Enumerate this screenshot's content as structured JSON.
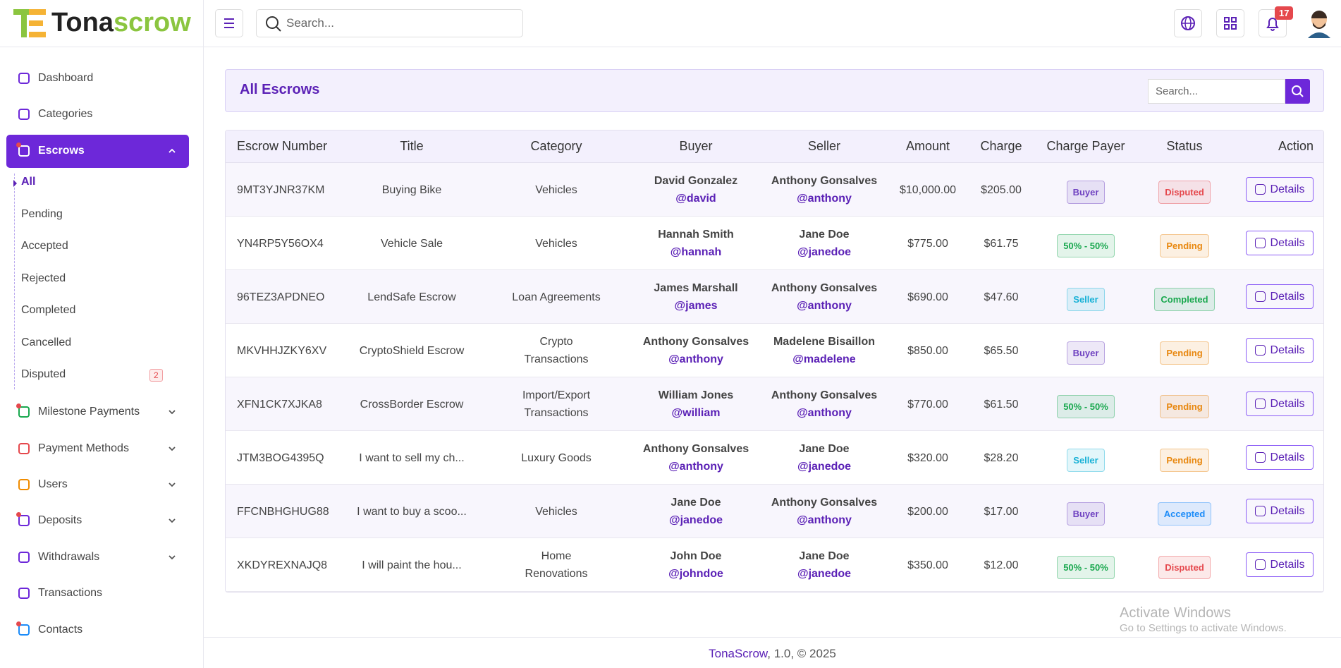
{
  "header": {
    "logo_part1": "Tona",
    "logo_part2": "scrow",
    "search_placeholder": "Search...",
    "notification_count": "17"
  },
  "sidebar": {
    "items": [
      {
        "label": "Dashboard"
      },
      {
        "label": "Categories"
      },
      {
        "label": "Escrows",
        "submenu": [
          "All",
          "Pending",
          "Accepted",
          "Rejected",
          "Completed",
          "Cancelled",
          "Disputed"
        ],
        "disputed_count": "2"
      },
      {
        "label": "Milestone Payments"
      },
      {
        "label": "Payment Methods"
      },
      {
        "label": "Users"
      },
      {
        "label": "Deposits"
      },
      {
        "label": "Withdrawals"
      },
      {
        "label": "Transactions"
      },
      {
        "label": "Contacts"
      }
    ]
  },
  "page": {
    "title": "All Escrows",
    "search_placeholder": "Search..."
  },
  "table": {
    "headers": [
      "Escrow Number",
      "Title",
      "Category",
      "Buyer",
      "Seller",
      "Amount",
      "Charge",
      "Charge Payer",
      "Status",
      "Action"
    ],
    "rows": [
      {
        "escrow_number": "9MT3YJNR37KM",
        "title": "Buying Bike",
        "category": "Vehicles",
        "buyer": {
          "name": "David Gonzalez",
          "username": "@david"
        },
        "seller": {
          "name": "Anthony Gonsalves",
          "username": "@anthony"
        },
        "amount": "$10,000.00",
        "charge": "$205.00",
        "charge_payer": {
          "text": "Buyer",
          "color": "#6f42c1"
        },
        "status": {
          "text": "Disputed",
          "color": "#e5484d"
        },
        "action": "Details"
      },
      {
        "escrow_number": "YN4RP5Y56OX4",
        "title": "Vehicle Sale",
        "category": "Vehicles",
        "buyer": {
          "name": "Hannah Smith",
          "username": "@hannah"
        },
        "seller": {
          "name": "Jane Doe",
          "username": "@janedoe"
        },
        "amount": "$775.00",
        "charge": "$61.75",
        "charge_payer": {
          "text": "50% - 50%",
          "color": "#1aa84f"
        },
        "status": {
          "text": "Pending",
          "color": "#e8870e"
        },
        "action": "Details"
      },
      {
        "escrow_number": "96TEZ3APDNEO",
        "title": "LendSafe Escrow",
        "category": "Loan Agreements",
        "buyer": {
          "name": "James Marshall",
          "username": "@james"
        },
        "seller": {
          "name": "Anthony Gonsalves",
          "username": "@anthony"
        },
        "amount": "$690.00",
        "charge": "$47.60",
        "charge_payer": {
          "text": "Seller",
          "color": "#17b1d6"
        },
        "status": {
          "text": "Completed",
          "color": "#1aa84f"
        },
        "action": "Details"
      },
      {
        "escrow_number": "MKVHHJZKY6XV",
        "title": "CryptoShield Escrow",
        "category": "Crypto Transactions",
        "buyer": {
          "name": "Anthony Gonsalves",
          "username": "@anthony"
        },
        "seller": {
          "name": "Madelene Bisaillon",
          "username": "@madelene"
        },
        "amount": "$850.00",
        "charge": "$65.50",
        "charge_payer": {
          "text": "Buyer",
          "color": "#6f42c1"
        },
        "status": {
          "text": "Pending",
          "color": "#e8870e"
        },
        "action": "Details"
      },
      {
        "escrow_number": "XFN1CK7XJKA8",
        "title": "CrossBorder Escrow",
        "category": "Import/Export Transactions",
        "buyer": {
          "name": "William Jones",
          "username": "@william"
        },
        "seller": {
          "name": "Anthony Gonsalves",
          "username": "@anthony"
        },
        "amount": "$770.00",
        "charge": "$61.50",
        "charge_payer": {
          "text": "50% - 50%",
          "color": "#1aa84f"
        },
        "status": {
          "text": "Pending",
          "color": "#e8870e"
        },
        "action": "Details"
      },
      {
        "escrow_number": "JTM3BOG4395Q",
        "title": "I want to sell my ch...",
        "category": "Luxury Goods",
        "buyer": {
          "name": "Anthony Gonsalves",
          "username": "@anthony"
        },
        "seller": {
          "name": "Jane Doe",
          "username": "@janedoe"
        },
        "amount": "$320.00",
        "charge": "$28.20",
        "charge_payer": {
          "text": "Seller",
          "color": "#17b1d6"
        },
        "status": {
          "text": "Pending",
          "color": "#e8870e"
        },
        "action": "Details"
      },
      {
        "escrow_number": "FFCNBHGHUG88",
        "title": "I want to buy a scoo...",
        "category": "Vehicles",
        "buyer": {
          "name": "Jane Doe",
          "username": "@janedoe"
        },
        "seller": {
          "name": "Anthony Gonsalves",
          "username": "@anthony"
        },
        "amount": "$200.00",
        "charge": "$17.00",
        "charge_payer": {
          "text": "Buyer",
          "color": "#6f42c1"
        },
        "status": {
          "text": "Accepted",
          "color": "#1d8cf8"
        },
        "action": "Details"
      },
      {
        "escrow_number": "XKDYREXNAJQ8",
        "title": "I will paint the hou...",
        "category": "Home Renovations",
        "buyer": {
          "name": "John Doe",
          "username": "@johndoe"
        },
        "seller": {
          "name": "Jane Doe",
          "username": "@janedoe"
        },
        "amount": "$350.00",
        "charge": "$12.00",
        "charge_payer": {
          "text": "50% - 50%",
          "color": "#1aa84f"
        },
        "status": {
          "text": "Disputed",
          "color": "#e5484d"
        },
        "action": "Details"
      }
    ]
  },
  "footer": {
    "brand": "TonaScrow",
    "rest": ", 1.0, © 2025"
  },
  "watermark": {
    "line1": "Activate Windows",
    "line2": "Go to Settings to activate Windows."
  }
}
